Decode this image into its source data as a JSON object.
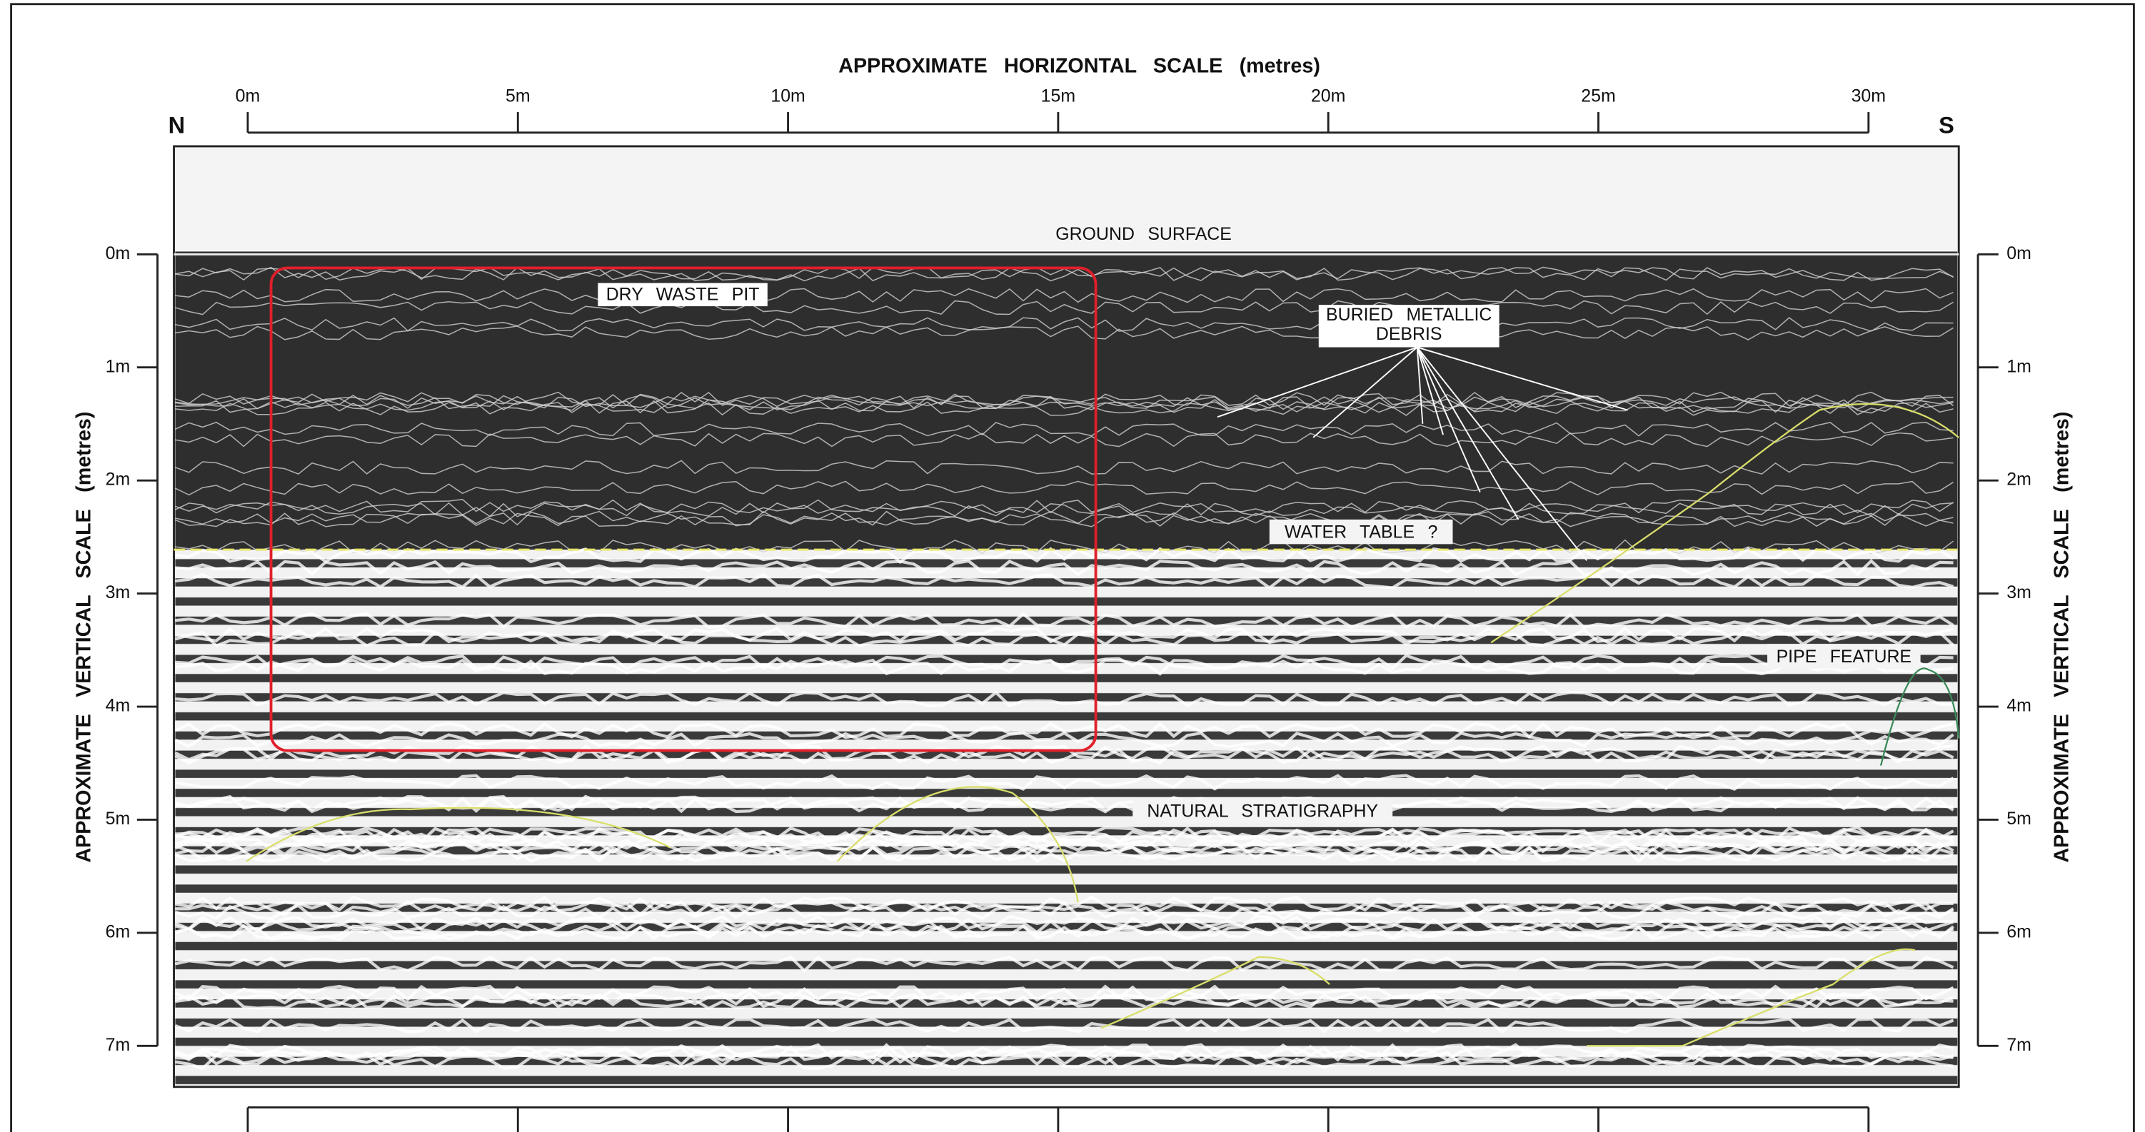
{
  "header": {
    "title": "APPROXIMATE HORIZONTAL SCALE (metres)"
  },
  "horizontal_scale": {
    "ticks": [
      "0m",
      "5m",
      "10m",
      "15m",
      "20m",
      "25m",
      "30m"
    ]
  },
  "vertical_scale": {
    "title": "APPROXIMATE VERTICAL SCALE (metres)",
    "ticks": [
      "0m",
      "1m",
      "2m",
      "3m",
      "4m",
      "5m",
      "6m",
      "7m"
    ]
  },
  "directions": {
    "north": "N",
    "south": "S"
  },
  "annotations": {
    "ground_surface": "GROUND SURFACE",
    "dry_waste_pit": "DRY WASTE PIT",
    "buried_metallic_debris": [
      "BURIED METALLIC",
      "DEBRIS"
    ],
    "water_table": "WATER TABLE ?",
    "pipe_feature": "PIPE FEATURE",
    "natural_stratigraphy": "NATURAL STRATIGRAPHY"
  }
}
